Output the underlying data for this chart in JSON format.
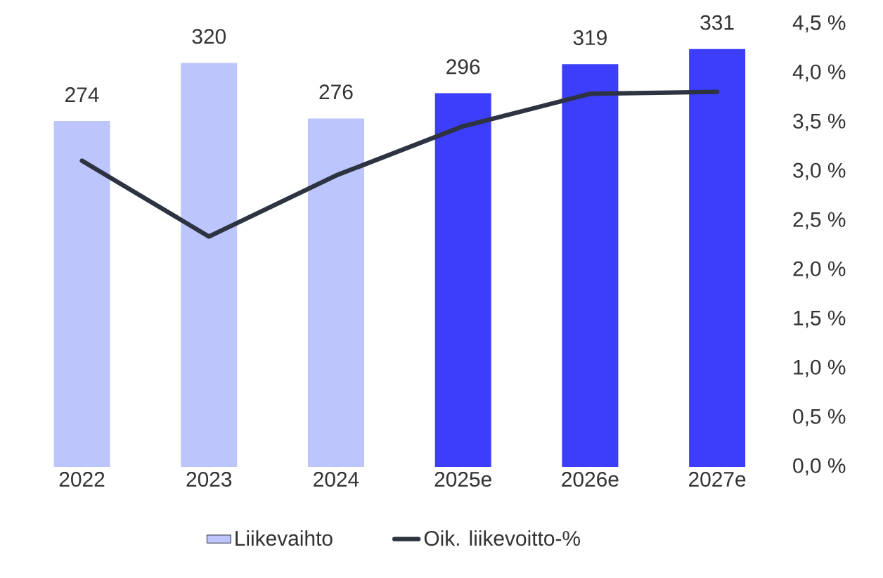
{
  "chart_data": {
    "type": "bar",
    "categories": [
      "2022",
      "2023",
      "2024",
      "2025e",
      "2026e",
      "2027e"
    ],
    "series": [
      {
        "name": "Liikevaihto",
        "color": "#bcc6fd",
        "colors": [
          "#bcc6fd",
          "#bcc6fd",
          "#bcc6fd",
          "#3d3dfc",
          "#3d3dfc",
          "#3d3dfc"
        ],
        "values": [
          274,
          320,
          276,
          296,
          319,
          331
        ],
        "value_labels": [
          "274",
          "320",
          "276",
          "296",
          "319",
          "331"
        ]
      },
      {
        "name": "Oik. liikevoitto-%",
        "type": "line",
        "axis": "y2",
        "color": "#2d3340",
        "line_style": "solid",
        "values": [
          3.11,
          2.34,
          2.96,
          3.46,
          3.79,
          3.81
        ]
      }
    ],
    "y2lim": [
      0,
      4.5
    ],
    "y2ticks": [
      {
        "value": 0,
        "label": "0,0 %"
      },
      {
        "value": 0.5,
        "label": "0,5 %"
      },
      {
        "value": 1,
        "label": "1,0 %"
      },
      {
        "value": 1.5,
        "label": "1,5 %"
      },
      {
        "value": 2,
        "label": "2,0 %"
      },
      {
        "value": 2.5,
        "label": "2,5 %"
      },
      {
        "value": 3,
        "label": "3,0 %"
      },
      {
        "value": 3.5,
        "label": "3,5 %"
      },
      {
        "value": 4,
        "label": "4,0 %"
      },
      {
        "value": 4.5,
        "label": "4,5 %"
      }
    ],
    "legend": "bottom"
  }
}
